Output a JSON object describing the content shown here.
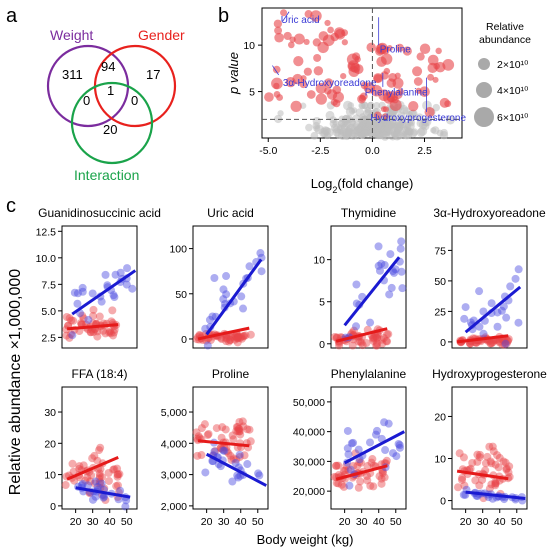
{
  "panels": {
    "a": "a",
    "b": "b",
    "c": "c"
  },
  "venn": {
    "sets": [
      {
        "name": "Weight",
        "color": "#7b2c9e"
      },
      {
        "name": "Gender",
        "color": "#e8211d"
      },
      {
        "name": "Interaction",
        "color": "#1aa34a"
      }
    ],
    "counts": {
      "weight_only": "311",
      "weight_gender": "94",
      "gender_only": "17",
      "all_three": "1",
      "weight_interaction": "0",
      "gender_interaction": "0",
      "interaction_only": "20"
    }
  },
  "chart_data": [
    {
      "type": "scatter",
      "name": "volcano",
      "xlabel": "Log2(fold change)",
      "ylabel": "p value",
      "xlim": [
        -5.3,
        4.3
      ],
      "ylim": [
        0,
        14
      ],
      "xticks": [
        "-5.0",
        "-2.5",
        "0.0",
        "2.5"
      ],
      "yticks": [
        "5",
        "10"
      ],
      "threshold_y": 2,
      "threshold_x": 0,
      "colors": {
        "significant": "#e8454a",
        "non_significant": "#bdbdbd"
      },
      "annotations": [
        {
          "label": "Uric acid",
          "x": -4.4,
          "y": 12.4
        },
        {
          "label": "Proline",
          "x": 0.35,
          "y": 9.2
        },
        {
          "label": "3α-Hydroxyoreadone",
          "x": -4.3,
          "y": 5.6
        },
        {
          "label": "Phenylalanine",
          "x": 0.4,
          "y": 4.6
        },
        {
          "label": "Hydroxyprogesterone",
          "x": 2.4,
          "y": 4.2
        }
      ],
      "legend": {
        "title": "Relative abundance",
        "entries": [
          "2×10¹⁰",
          "4×10¹⁰",
          "6×10¹⁰"
        ],
        "position": "right"
      }
    },
    {
      "type": "scatter",
      "name": "Guanidinosuccinic acid",
      "xlim": [
        12,
        56
      ],
      "ylim": [
        1.5,
        13.0
      ],
      "yticks": [
        "2.5",
        "5.0",
        "7.5",
        "10.0",
        "12.5"
      ],
      "ytick_values": [
        2.5,
        5.0,
        7.5,
        10.0,
        12.5
      ],
      "female": {
        "n": 55,
        "y_center": 3.6,
        "y_spread": 1.0,
        "fit": [
          [
            15,
            3.3
          ],
          [
            45,
            3.7
          ]
        ]
      },
      "male": {
        "n": 25,
        "y_center": 7.0,
        "y_spread": 2.2,
        "fit": [
          [
            18,
            4.7
          ],
          [
            55,
            8.8
          ]
        ]
      }
    },
    {
      "type": "scatter",
      "name": "Uric acid",
      "xlim": [
        12,
        56
      ],
      "ylim": [
        -10,
        125
      ],
      "yticks": [
        "0",
        "50",
        "100"
      ],
      "ytick_values": [
        0,
        50,
        100
      ],
      "female": {
        "n": 55,
        "y_center": 2,
        "y_spread": 4,
        "fit": [
          [
            15,
            0
          ],
          [
            45,
            12
          ]
        ]
      },
      "male": {
        "n": 25,
        "y_center": 60,
        "y_spread": 30,
        "fit": [
          [
            20,
            5
          ],
          [
            52,
            88
          ]
        ]
      }
    },
    {
      "type": "scatter",
      "name": "Thymidine",
      "xlim": [
        12,
        56
      ],
      "ylim": [
        -0.5,
        14
      ],
      "yticks": [
        "0",
        "5",
        "10"
      ],
      "ytick_values": [
        0,
        5,
        10
      ],
      "female": {
        "n": 55,
        "y_center": 0.6,
        "y_spread": 0.8,
        "fit": [
          [
            15,
            0.3
          ],
          [
            45,
            1.8
          ]
        ]
      },
      "male": {
        "n": 25,
        "y_center": 7,
        "y_spread": 3.5,
        "fit": [
          [
            20,
            2.2
          ],
          [
            52,
            10.3
          ]
        ]
      }
    },
    {
      "type": "scatter",
      "name": "3α-Hydroxyoreadone",
      "xlim": [
        12,
        56
      ],
      "ylim": [
        -5,
        95
      ],
      "yticks": [
        "0",
        "25",
        "50",
        "75"
      ],
      "ytick_values": [
        0,
        25,
        50,
        75
      ],
      "female": {
        "n": 55,
        "y_center": 1,
        "y_spread": 3,
        "fit": [
          [
            15,
            0
          ],
          [
            45,
            5
          ]
        ]
      },
      "male": {
        "n": 25,
        "y_center": 35,
        "y_spread": 25,
        "fit": [
          [
            20,
            8
          ],
          [
            52,
            45
          ]
        ]
      }
    },
    {
      "type": "scatter",
      "name": "FFA  (18:4)",
      "xlim": [
        12,
        56
      ],
      "ylim": [
        -1,
        38
      ],
      "yticks": [
        "0",
        "10",
        "20",
        "30"
      ],
      "ytick_values": [
        0,
        10,
        20,
        30
      ],
      "xticks": [
        "20",
        "30",
        "40",
        "50"
      ],
      "female": {
        "n": 55,
        "y_center": 10,
        "y_spread": 6,
        "fit": [
          [
            15,
            8.5
          ],
          [
            45,
            15.5
          ]
        ]
      },
      "male": {
        "n": 25,
        "y_center": 4,
        "y_spread": 3,
        "fit": [
          [
            20,
            5.8
          ],
          [
            52,
            2.8
          ]
        ]
      }
    },
    {
      "type": "scatter",
      "name": "Proline",
      "xlim": [
        12,
        56
      ],
      "ylim": [
        1900,
        5800
      ],
      "yticks": [
        "2,000",
        "3,000",
        "4,000",
        "5,000"
      ],
      "ytick_values": [
        2000,
        3000,
        4000,
        5000
      ],
      "xticks": [
        "20",
        "30",
        "40",
        "50"
      ],
      "female": {
        "n": 55,
        "y_center": 4000,
        "y_spread": 650,
        "fit": [
          [
            15,
            4080
          ],
          [
            45,
            3920
          ]
        ]
      },
      "male": {
        "n": 25,
        "y_center": 3200,
        "y_spread": 600,
        "fit": [
          [
            20,
            3650
          ],
          [
            55,
            2650
          ]
        ]
      }
    },
    {
      "type": "scatter",
      "name": "Phenylalanine",
      "xlim": [
        12,
        56
      ],
      "ylim": [
        14000,
        55000
      ],
      "yticks": [
        "20,000",
        "30,000",
        "40,000",
        "50,000"
      ],
      "ytick_values": [
        20000,
        30000,
        40000,
        50000
      ],
      "xticks": [
        "20",
        "30",
        "40",
        "50"
      ],
      "female": {
        "n": 55,
        "y_center": 26000,
        "y_spread": 5000,
        "fit": [
          [
            15,
            24000
          ],
          [
            45,
            28500
          ]
        ]
      },
      "male": {
        "n": 25,
        "y_center": 34000,
        "y_spread": 9000,
        "fit": [
          [
            20,
            29500
          ],
          [
            55,
            40000
          ]
        ]
      }
    },
    {
      "type": "scatter",
      "name": "Hydroxyprogesterone",
      "xlim": [
        12,
        56
      ],
      "ylim": [
        -2,
        27
      ],
      "yticks": [
        "0",
        "10",
        "20"
      ],
      "ytick_values": [
        0,
        10,
        20
      ],
      "xticks": [
        "20",
        "30",
        "40",
        "50"
      ],
      "female": {
        "n": 55,
        "y_center": 6,
        "y_spread": 5,
        "fit": [
          [
            15,
            7
          ],
          [
            45,
            5.2
          ]
        ]
      },
      "male": {
        "n": 25,
        "y_center": 1,
        "y_spread": 1,
        "fit": [
          [
            20,
            2
          ],
          [
            55,
            0.5
          ]
        ]
      }
    }
  ],
  "shared_axes": {
    "ylabel": "Relative abundance ×1,000,000",
    "xlabel": "Body weight (kg)"
  },
  "colors": {
    "female": "#e8454a",
    "male": "#4a4ae0",
    "female_fit": "#e51a1a",
    "male_fit": "#1a1ad1"
  }
}
